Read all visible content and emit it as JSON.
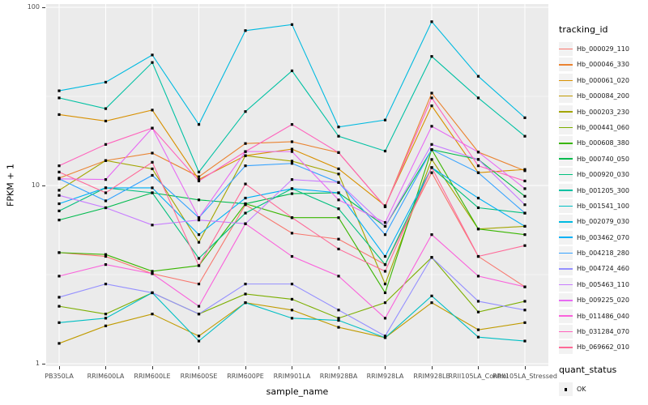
{
  "figure": {
    "x_axis_title": "sample_name",
    "y_axis_title": "FPKM + 1",
    "y_tick_labels": [
      "1",
      "10",
      "100"
    ],
    "panel_bg_color": "#EBEBEB",
    "grid_color": "#FFFFFF",
    "tick_label_color": "#4D4D4D"
  },
  "legend": {
    "tracking_title": "tracking_id",
    "quant_title": "quant_status",
    "quant_items": [
      {
        "label": "OK",
        "marker": "black-square"
      }
    ]
  },
  "chart_data": {
    "type": "line",
    "title": "",
    "xlabel": "sample_name",
    "ylabel": "FPKM + 1",
    "y_scale": "log10",
    "y_ticks": [
      1,
      10,
      100
    ],
    "y_minor_gridlines": [
      3.1623,
      31.623
    ],
    "ylim": [
      1,
      100
    ],
    "grid": true,
    "legend_position": "right",
    "point_marker": "black-square",
    "categories": [
      "PB350LA",
      "RRIM600LA",
      "RRIM600LE",
      "RRIM600SE",
      "RRIM600PE",
      "RRIM901LA",
      "RRIM928BA",
      "RRIM928LA",
      "RRIM928LE",
      "RRII105LA_Control",
      "RRII105LA_Stressed"
    ],
    "series": [
      {
        "name": "Hb_000029_110",
        "color": "#F8766D",
        "values": [
          4.2,
          4.0,
          3.2,
          2.8,
          7.8,
          5.4,
          5.0,
          3.6,
          11.8,
          4.0,
          2.7
        ]
      },
      {
        "name": "Hb_000046_330",
        "color": "#EA8331",
        "values": [
          11.0,
          13.8,
          15.2,
          11.2,
          17.2,
          17.6,
          15.3,
          7.6,
          33,
          15.4,
          12.1
        ]
      },
      {
        "name": "Hb_000061_020",
        "color": "#D89000",
        "values": [
          25,
          23,
          26.5,
          10.8,
          14.7,
          16.0,
          12.4,
          7.7,
          28,
          11.8,
          12.3
        ]
      },
      {
        "name": "Hb_000084_200",
        "color": "#C09B00",
        "values": [
          1.3,
          1.63,
          1.9,
          1.43,
          2.2,
          2.0,
          1.6,
          1.4,
          2.2,
          1.55,
          1.7
        ]
      },
      {
        "name": "Hb_000203_230",
        "color": "#A3A500",
        "values": [
          9.4,
          13.8,
          12.4,
          4.8,
          14.7,
          13.7,
          11.6,
          2.8,
          14.0,
          5.7,
          5.9
        ]
      },
      {
        "name": "Hb_000441_060",
        "color": "#7CAE00",
        "values": [
          2.1,
          1.9,
          2.5,
          1.9,
          2.46,
          2.3,
          1.8,
          2.2,
          3.95,
          1.95,
          2.24
        ]
      },
      {
        "name": "Hb_000608_380",
        "color": "#39B600",
        "values": [
          4.2,
          4.1,
          3.3,
          3.55,
          7.9,
          6.6,
          6.6,
          2.5,
          15.9,
          5.7,
          5.3
        ]
      },
      {
        "name": "Hb_000740_050",
        "color": "#00BB4E",
        "values": [
          6.4,
          7.5,
          9.1,
          8.3,
          7.9,
          9.0,
          9.1,
          5.9,
          15.9,
          14.0,
          8.7
        ]
      },
      {
        "name": "Hb_000920_030",
        "color": "#00BF7D",
        "values": [
          7.2,
          9.7,
          9.1,
          3.9,
          7.0,
          9.6,
          7.4,
          3.6,
          12.6,
          7.5,
          7.0
        ]
      },
      {
        "name": "Hb_001205_300",
        "color": "#00C1A3",
        "values": [
          31,
          27,
          49,
          11.9,
          26,
          44,
          18.9,
          15.6,
          53,
          31,
          18.9
        ]
      },
      {
        "name": "Hb_001541_100",
        "color": "#00BFC4",
        "values": [
          1.7,
          1.8,
          2.5,
          1.34,
          2.2,
          1.8,
          1.75,
          1.4,
          2.4,
          1.41,
          1.34
        ]
      },
      {
        "name": "Hb_002079_030",
        "color": "#00BAE0",
        "values": [
          34,
          38,
          54,
          22,
          74,
          80,
          21.3,
          23.3,
          83,
          41,
          24
        ]
      },
      {
        "name": "Hb_003462_070",
        "color": "#00B0F6",
        "values": [
          7.9,
          9.7,
          9.7,
          5.3,
          8.5,
          9.6,
          9.1,
          4.0,
          12.6,
          8.5,
          5.9
        ]
      },
      {
        "name": "Hb_004218_280",
        "color": "#35A2FF",
        "values": [
          10.9,
          8.2,
          11.4,
          6.6,
          12.9,
          13.3,
          10.4,
          5.3,
          15.9,
          11.8,
          7.0
        ]
      },
      {
        "name": "Hb_004724_460",
        "color": "#9590FF",
        "values": [
          2.36,
          2.8,
          2.5,
          1.9,
          2.8,
          2.8,
          2.0,
          1.43,
          3.95,
          2.24,
          2.0
        ]
      },
      {
        "name": "Hb_005463_110",
        "color": "#C77CFF",
        "values": [
          8.8,
          7.5,
          6.0,
          6.4,
          6.1,
          10.8,
          10.4,
          5.9,
          17.0,
          14.0,
          7.8
        ]
      },
      {
        "name": "Hb_009225_020",
        "color": "#E76BF3",
        "values": [
          10.9,
          10.8,
          21,
          6.6,
          15.5,
          15.5,
          8.3,
          6.2,
          21.5,
          15.4,
          9.6
        ]
      },
      {
        "name": "Hb_011486_040",
        "color": "#FA62DB",
        "values": [
          3.1,
          3.6,
          3.2,
          2.1,
          6.1,
          4.0,
          3.1,
          1.8,
          5.3,
          3.1,
          2.7
        ]
      },
      {
        "name": "Hb_031284_070",
        "color": "#FF62BC",
        "values": [
          12.9,
          17,
          21,
          10.6,
          15.5,
          22,
          15.3,
          7.6,
          31,
          12.9,
          10.6
        ]
      },
      {
        "name": "Hb_069662_010",
        "color": "#FF6A98",
        "values": [
          11.9,
          9.1,
          13.5,
          3.55,
          10.2,
          6.6,
          4.4,
          3.3,
          12.6,
          4.0,
          4.6
        ]
      }
    ]
  }
}
